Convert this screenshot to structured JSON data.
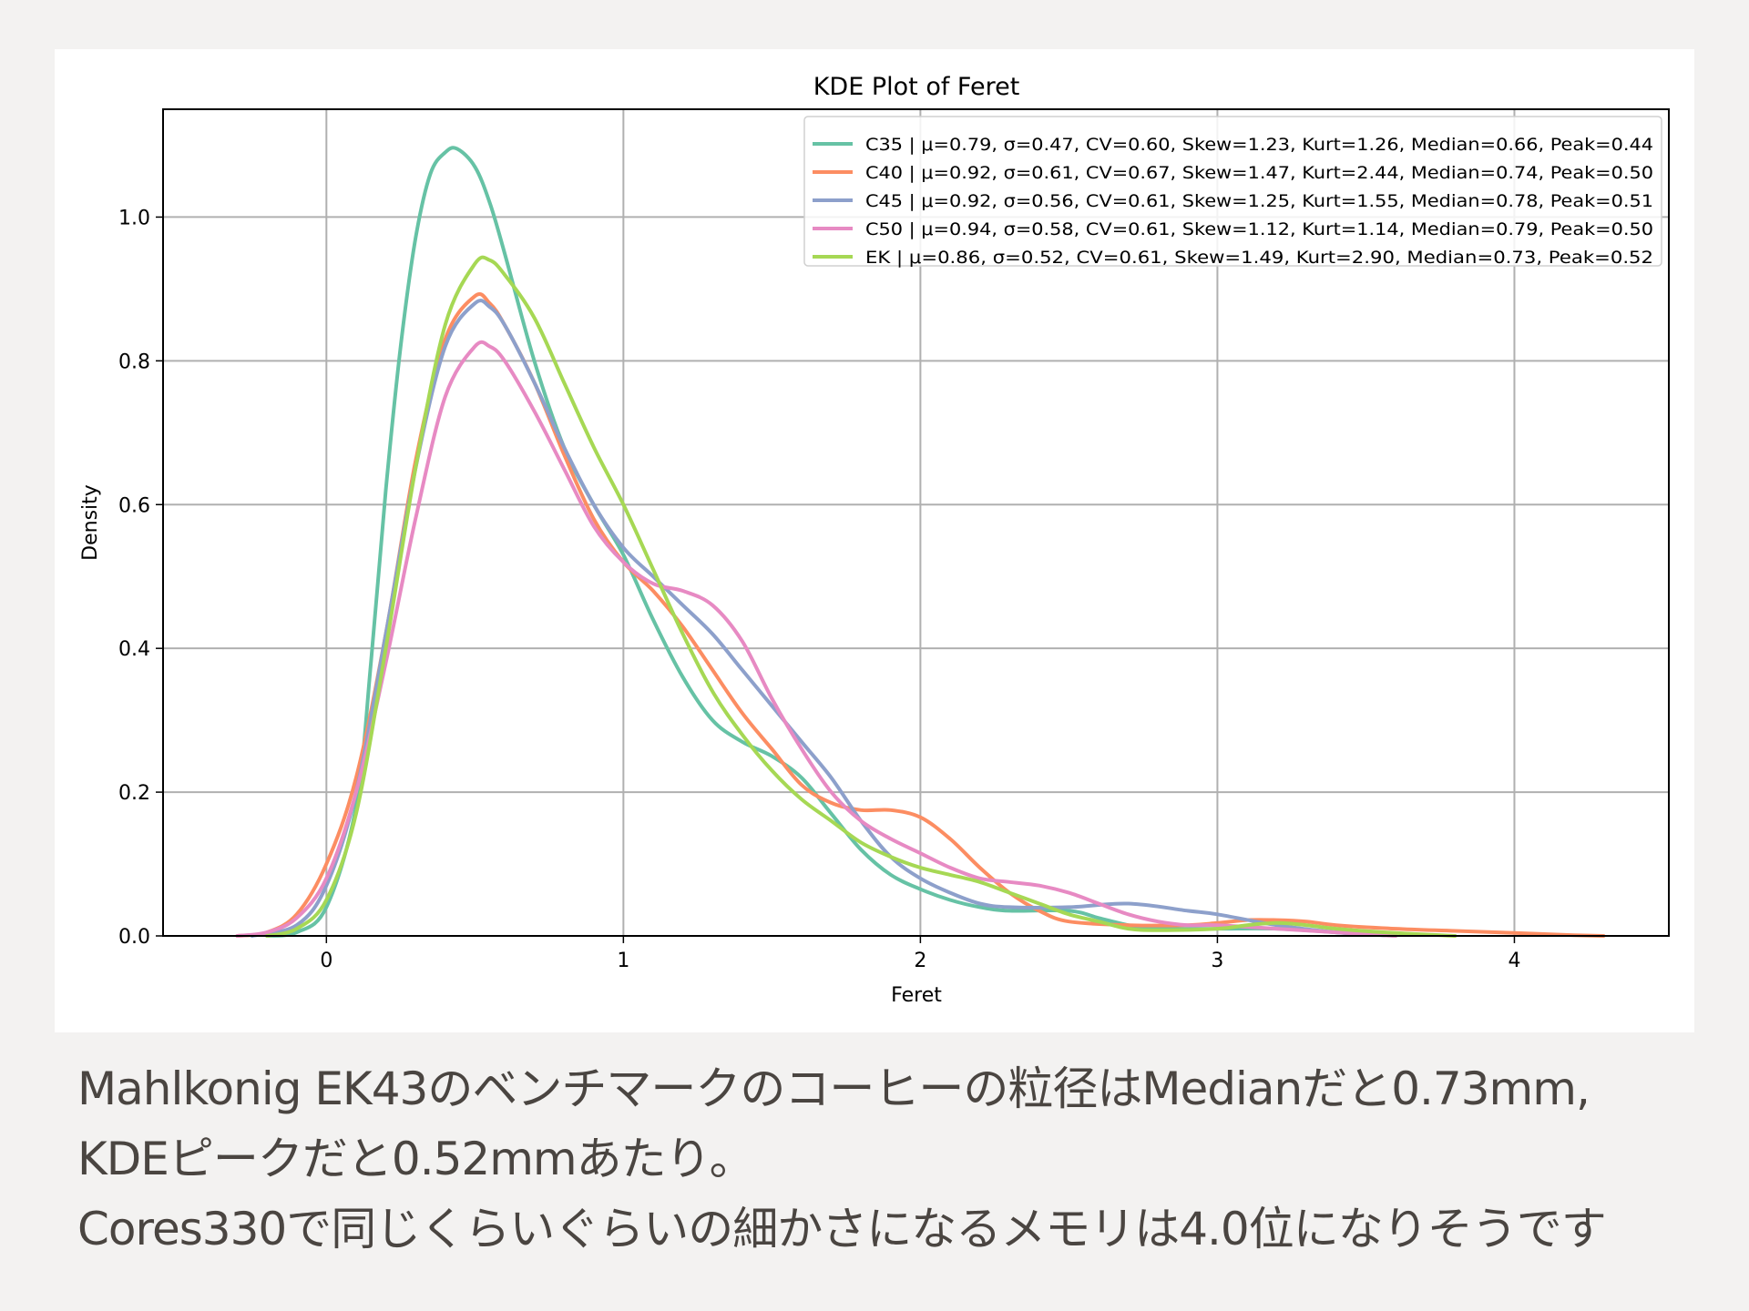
{
  "caption": {
    "lines": [
      "Mahlkonig EK43のベンチマークのコーヒーの粒径はMedianだと0.73mm,",
      "KDEピークだと0.52mmあたり。",
      "Cores330で同じくらいぐらいの細かさになるメモリは4.0位になりそうです"
    ]
  },
  "chart_data": {
    "type": "line",
    "title": "KDE Plot of Feret",
    "xlabel": "Feret",
    "ylabel": "Density",
    "xlim": [
      -0.55,
      4.52
    ],
    "ylim": [
      0,
      1.15
    ],
    "xticks": [
      0,
      1,
      2,
      3,
      4
    ],
    "xtick_labels": [
      "0",
      "1",
      "2",
      "3",
      "4"
    ],
    "yticks": [
      0,
      0.2,
      0.4,
      0.6,
      0.8,
      1.0
    ],
    "ytick_labels": [
      "0.0",
      "0.2",
      "0.4",
      "0.6",
      "0.8",
      "1.0"
    ],
    "grid": true,
    "legend_position": "top-right",
    "series": [
      {
        "name": "C35 | μ=0.79, σ=0.47, CV=0.60, Skew=1.23, Kurt=1.26, Median=0.66, Peak=0.44",
        "color": "#66c2a5",
        "points": [
          [
            -0.2,
            0.0
          ],
          [
            -0.1,
            0.005
          ],
          [
            0.0,
            0.04
          ],
          [
            0.1,
            0.18
          ],
          [
            0.15,
            0.38
          ],
          [
            0.2,
            0.62
          ],
          [
            0.25,
            0.82
          ],
          [
            0.3,
            0.97
          ],
          [
            0.35,
            1.06
          ],
          [
            0.4,
            1.09
          ],
          [
            0.44,
            1.095
          ],
          [
            0.5,
            1.07
          ],
          [
            0.55,
            1.02
          ],
          [
            0.6,
            0.95
          ],
          [
            0.7,
            0.8
          ],
          [
            0.8,
            0.68
          ],
          [
            0.9,
            0.6
          ],
          [
            1.0,
            0.53
          ],
          [
            1.1,
            0.44
          ],
          [
            1.2,
            0.36
          ],
          [
            1.3,
            0.3
          ],
          [
            1.4,
            0.27
          ],
          [
            1.5,
            0.25
          ],
          [
            1.6,
            0.22
          ],
          [
            1.7,
            0.17
          ],
          [
            1.8,
            0.12
          ],
          [
            1.9,
            0.085
          ],
          [
            2.0,
            0.065
          ],
          [
            2.1,
            0.05
          ],
          [
            2.2,
            0.04
          ],
          [
            2.3,
            0.035
          ],
          [
            2.5,
            0.035
          ],
          [
            2.6,
            0.025
          ],
          [
            2.7,
            0.015
          ],
          [
            2.8,
            0.01
          ],
          [
            3.0,
            0.01
          ],
          [
            3.2,
            0.01
          ],
          [
            3.4,
            0.005
          ],
          [
            3.6,
            0.0
          ]
        ]
      },
      {
        "name": "C40 | μ=0.92, σ=0.61, CV=0.67, Skew=1.47, Kurt=2.44, Median=0.74, Peak=0.50",
        "color": "#fc8d62",
        "points": [
          [
            -0.3,
            0.0
          ],
          [
            -0.2,
            0.005
          ],
          [
            -0.1,
            0.03
          ],
          [
            0.0,
            0.1
          ],
          [
            0.1,
            0.22
          ],
          [
            0.2,
            0.42
          ],
          [
            0.3,
            0.66
          ],
          [
            0.4,
            0.83
          ],
          [
            0.5,
            0.89
          ],
          [
            0.55,
            0.88
          ],
          [
            0.6,
            0.85
          ],
          [
            0.7,
            0.77
          ],
          [
            0.8,
            0.67
          ],
          [
            0.9,
            0.58
          ],
          [
            1.0,
            0.52
          ],
          [
            1.1,
            0.48
          ],
          [
            1.2,
            0.43
          ],
          [
            1.3,
            0.37
          ],
          [
            1.4,
            0.31
          ],
          [
            1.5,
            0.26
          ],
          [
            1.6,
            0.21
          ],
          [
            1.7,
            0.185
          ],
          [
            1.8,
            0.175
          ],
          [
            1.9,
            0.175
          ],
          [
            2.0,
            0.165
          ],
          [
            2.1,
            0.135
          ],
          [
            2.2,
            0.095
          ],
          [
            2.3,
            0.06
          ],
          [
            2.4,
            0.035
          ],
          [
            2.5,
            0.02
          ],
          [
            2.7,
            0.015
          ],
          [
            2.9,
            0.015
          ],
          [
            3.0,
            0.018
          ],
          [
            3.1,
            0.022
          ],
          [
            3.2,
            0.022
          ],
          [
            3.3,
            0.02
          ],
          [
            3.4,
            0.015
          ],
          [
            3.6,
            0.01
          ],
          [
            3.8,
            0.007
          ],
          [
            4.0,
            0.004
          ],
          [
            4.2,
            0.001
          ],
          [
            4.3,
            0.0
          ]
        ]
      },
      {
        "name": "C45 | μ=0.92, σ=0.56, CV=0.61, Skew=1.25, Kurt=1.55, Median=0.78, Peak=0.51",
        "color": "#8da0cb",
        "points": [
          [
            -0.25,
            0.0
          ],
          [
            -0.1,
            0.015
          ],
          [
            0.0,
            0.07
          ],
          [
            0.1,
            0.2
          ],
          [
            0.2,
            0.42
          ],
          [
            0.3,
            0.65
          ],
          [
            0.4,
            0.82
          ],
          [
            0.5,
            0.88
          ],
          [
            0.55,
            0.875
          ],
          [
            0.6,
            0.85
          ],
          [
            0.7,
            0.77
          ],
          [
            0.8,
            0.68
          ],
          [
            0.9,
            0.6
          ],
          [
            1.0,
            0.54
          ],
          [
            1.1,
            0.5
          ],
          [
            1.2,
            0.46
          ],
          [
            1.3,
            0.42
          ],
          [
            1.4,
            0.37
          ],
          [
            1.5,
            0.32
          ],
          [
            1.6,
            0.27
          ],
          [
            1.7,
            0.22
          ],
          [
            1.8,
            0.16
          ],
          [
            1.9,
            0.11
          ],
          [
            2.0,
            0.08
          ],
          [
            2.1,
            0.06
          ],
          [
            2.2,
            0.045
          ],
          [
            2.3,
            0.04
          ],
          [
            2.5,
            0.04
          ],
          [
            2.7,
            0.045
          ],
          [
            2.9,
            0.035
          ],
          [
            3.0,
            0.03
          ],
          [
            3.2,
            0.015
          ],
          [
            3.4,
            0.005
          ],
          [
            3.6,
            0.0
          ]
        ]
      },
      {
        "name": "C50 | μ=0.94, σ=0.58, CV=0.61, Skew=1.12, Kurt=1.14, Median=0.79, Peak=0.50",
        "color": "#e78ac3",
        "points": [
          [
            -0.3,
            0.0
          ],
          [
            -0.2,
            0.005
          ],
          [
            -0.1,
            0.025
          ],
          [
            0.0,
            0.08
          ],
          [
            0.1,
            0.2
          ],
          [
            0.2,
            0.38
          ],
          [
            0.3,
            0.58
          ],
          [
            0.4,
            0.75
          ],
          [
            0.5,
            0.82
          ],
          [
            0.55,
            0.82
          ],
          [
            0.6,
            0.8
          ],
          [
            0.7,
            0.73
          ],
          [
            0.8,
            0.65
          ],
          [
            0.9,
            0.57
          ],
          [
            1.0,
            0.52
          ],
          [
            1.1,
            0.49
          ],
          [
            1.2,
            0.48
          ],
          [
            1.3,
            0.46
          ],
          [
            1.4,
            0.41
          ],
          [
            1.5,
            0.33
          ],
          [
            1.6,
            0.26
          ],
          [
            1.7,
            0.2
          ],
          [
            1.8,
            0.16
          ],
          [
            1.9,
            0.135
          ],
          [
            2.0,
            0.115
          ],
          [
            2.1,
            0.095
          ],
          [
            2.2,
            0.08
          ],
          [
            2.3,
            0.075
          ],
          [
            2.4,
            0.07
          ],
          [
            2.5,
            0.06
          ],
          [
            2.6,
            0.045
          ],
          [
            2.7,
            0.03
          ],
          [
            2.8,
            0.02
          ],
          [
            2.9,
            0.015
          ],
          [
            3.0,
            0.015
          ],
          [
            3.2,
            0.01
          ],
          [
            3.4,
            0.005
          ],
          [
            3.6,
            0.0
          ]
        ]
      },
      {
        "name": "EK | μ=0.86, σ=0.52, CV=0.61, Skew=1.49, Kurt=2.90, Median=0.73, Peak=0.52",
        "color": "#a6d854",
        "points": [
          [
            -0.2,
            0.0
          ],
          [
            -0.1,
            0.01
          ],
          [
            0.0,
            0.05
          ],
          [
            0.1,
            0.17
          ],
          [
            0.2,
            0.4
          ],
          [
            0.3,
            0.65
          ],
          [
            0.4,
            0.85
          ],
          [
            0.5,
            0.935
          ],
          [
            0.55,
            0.94
          ],
          [
            0.6,
            0.92
          ],
          [
            0.7,
            0.86
          ],
          [
            0.8,
            0.77
          ],
          [
            0.9,
            0.68
          ],
          [
            1.0,
            0.6
          ],
          [
            1.1,
            0.51
          ],
          [
            1.2,
            0.42
          ],
          [
            1.3,
            0.34
          ],
          [
            1.4,
            0.28
          ],
          [
            1.5,
            0.23
          ],
          [
            1.6,
            0.19
          ],
          [
            1.7,
            0.16
          ],
          [
            1.8,
            0.13
          ],
          [
            1.9,
            0.11
          ],
          [
            2.0,
            0.095
          ],
          [
            2.1,
            0.085
          ],
          [
            2.2,
            0.075
          ],
          [
            2.3,
            0.06
          ],
          [
            2.4,
            0.045
          ],
          [
            2.5,
            0.03
          ],
          [
            2.6,
            0.02
          ],
          [
            2.7,
            0.01
          ],
          [
            2.8,
            0.008
          ],
          [
            3.0,
            0.01
          ],
          [
            3.1,
            0.015
          ],
          [
            3.2,
            0.018
          ],
          [
            3.3,
            0.015
          ],
          [
            3.4,
            0.01
          ],
          [
            3.6,
            0.004
          ],
          [
            3.8,
            0.0
          ]
        ]
      }
    ]
  }
}
